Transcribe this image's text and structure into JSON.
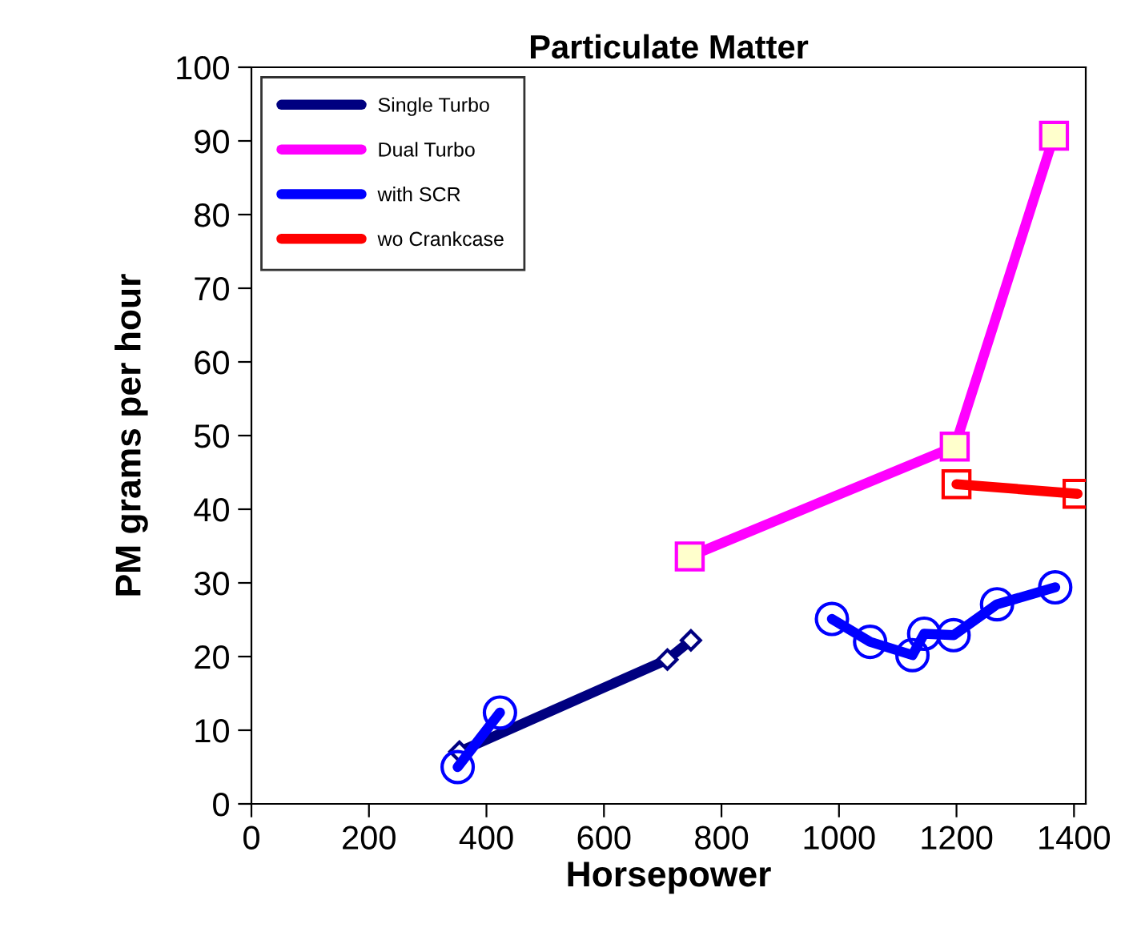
{
  "chart_data": {
    "type": "line",
    "title": "Particulate Matter",
    "xlabel": "Horsepower",
    "ylabel": "PM grams per hour",
    "xlim": [
      0,
      1420
    ],
    "xticks": [
      0,
      200,
      400,
      600,
      800,
      1000,
      1200,
      1400
    ],
    "ylim": [
      0,
      100
    ],
    "yticks": [
      0,
      10,
      20,
      30,
      40,
      50,
      60,
      70,
      80,
      90,
      100
    ],
    "grid": false,
    "legend": "top left",
    "line_style": "solid",
    "series": [
      {
        "name": "Single Turbo",
        "color": "#000080",
        "marker": "diamond",
        "x": [
          354,
          708,
          748
        ],
        "values": [
          7.1,
          19.6,
          22.2
        ]
      },
      {
        "name": "Dual Turbo",
        "color": "#ff00ff",
        "marker": "square",
        "x": [
          746,
          1197,
          1366
        ],
        "values": [
          33.6,
          48.5,
          90.7
        ]
      },
      {
        "name": "with SCR",
        "color": "#0000ff",
        "marker": "circle",
        "x": [
          351,
          423,
          700,
          988,
          1053,
          1125,
          1145,
          1195,
          1269,
          1368
        ],
        "values": [
          5.0,
          12.4,
          null,
          25.1,
          22.0,
          20.2,
          23.1,
          22.9,
          27.1,
          29.4
        ]
      },
      {
        "name": "wo Crankcase",
        "color": "#ff0000",
        "marker": "square",
        "x": [
          1200,
          1406
        ],
        "values": [
          43.4,
          42.1
        ]
      }
    ]
  }
}
